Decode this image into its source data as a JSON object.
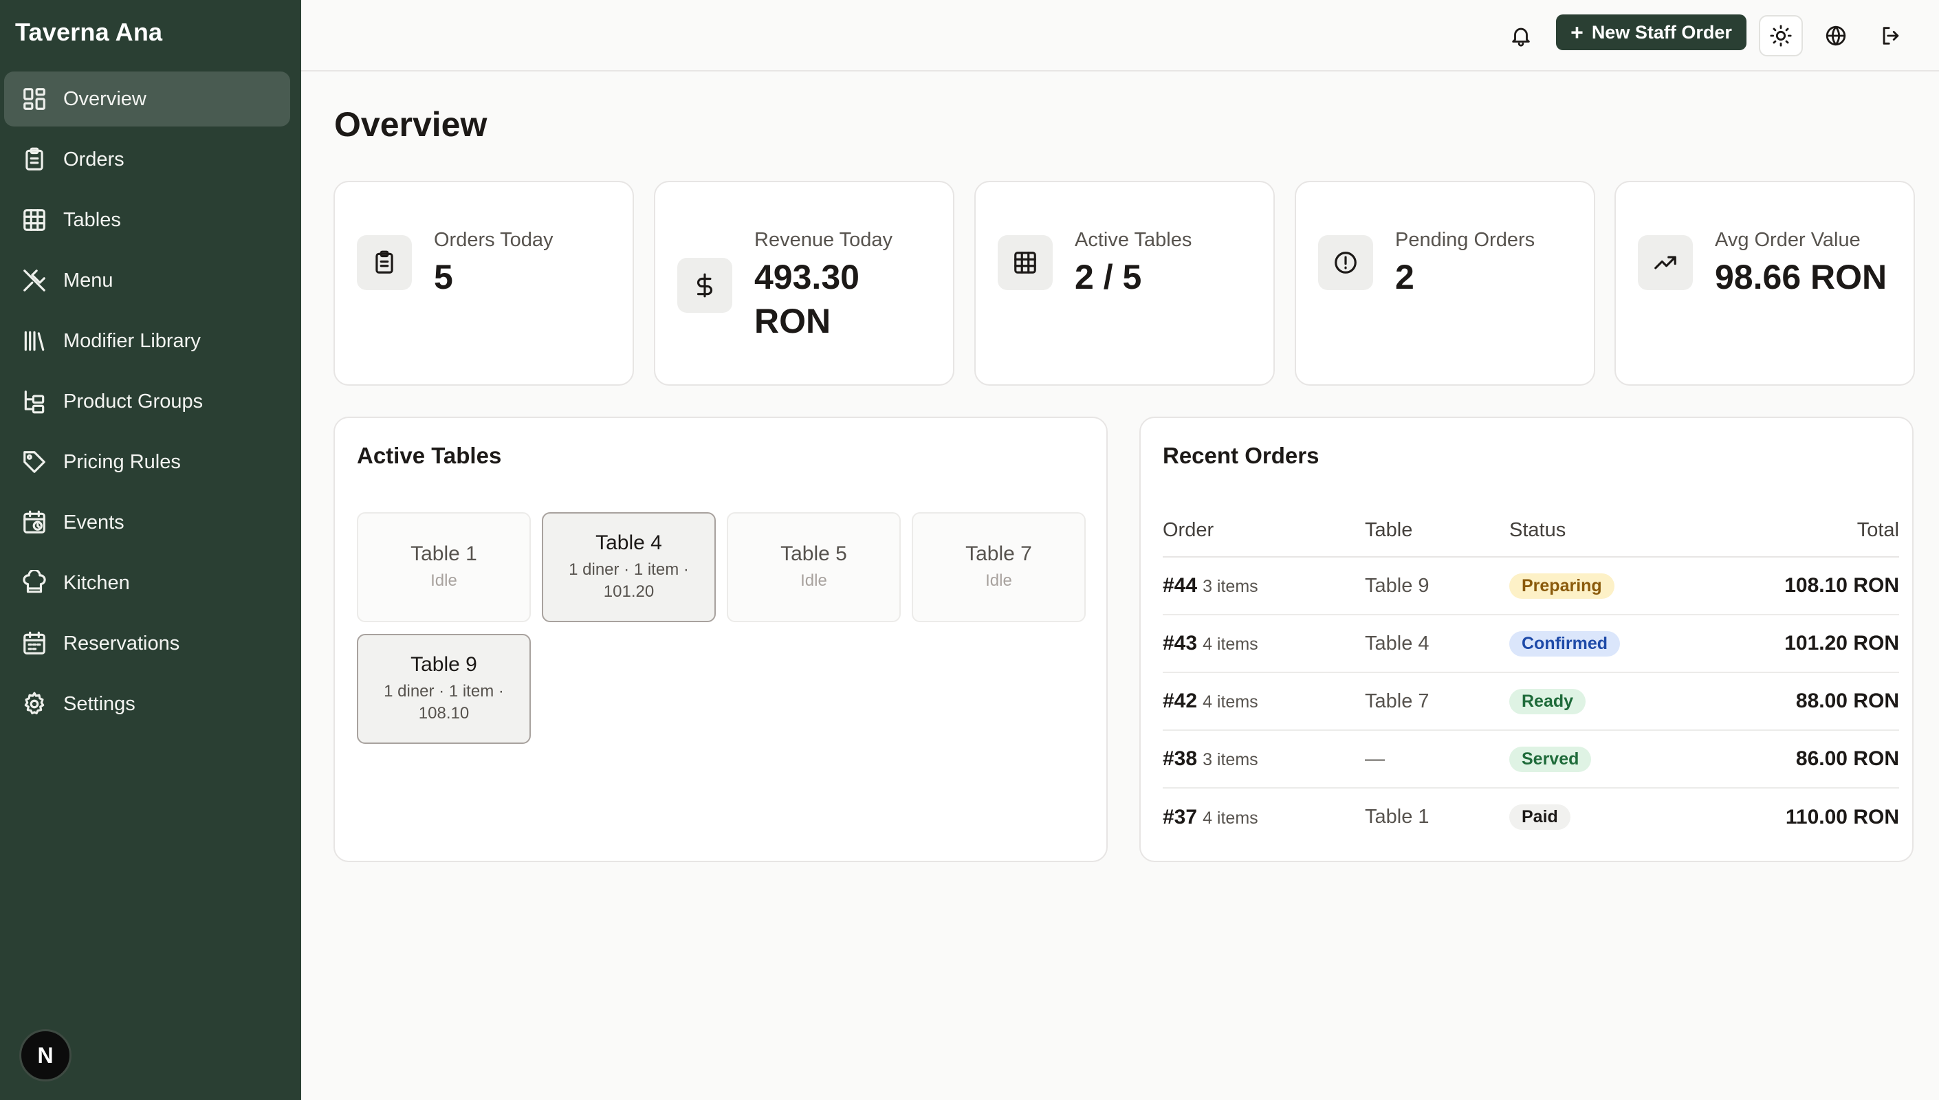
{
  "app": {
    "brand": "Taverna Ana"
  },
  "sidebar": {
    "items": [
      {
        "label": "Overview",
        "icon": "dashboard-icon",
        "active": true
      },
      {
        "label": "Orders",
        "icon": "clipboard-icon"
      },
      {
        "label": "Tables",
        "icon": "table-grid-icon"
      },
      {
        "label": "Menu",
        "icon": "utensils-icon"
      },
      {
        "label": "Modifier Library",
        "icon": "library-icon"
      },
      {
        "label": "Product Groups",
        "icon": "tree-icon"
      },
      {
        "label": "Pricing Rules",
        "icon": "tag-icon"
      },
      {
        "label": "Events",
        "icon": "calendar-clock-icon"
      },
      {
        "label": "Kitchen",
        "icon": "chef-hat-icon"
      },
      {
        "label": "Reservations",
        "icon": "calendar-icon"
      },
      {
        "label": "Settings",
        "icon": "gear-icon"
      }
    ],
    "avatar_initial": "N"
  },
  "topbar": {
    "new_order_label": "New Staff Order",
    "icons": [
      "bell-icon",
      "sun-icon",
      "globe-icon",
      "logout-icon"
    ]
  },
  "main": {
    "title": "Overview",
    "stats": [
      {
        "label": "Orders Today",
        "value": "5",
        "icon": "clipboard-icon"
      },
      {
        "label": "Revenue Today",
        "value": "493.30 RON",
        "icon": "dollar-icon"
      },
      {
        "label": "Active Tables",
        "value": "2 / 5",
        "icon": "table-grid-icon"
      },
      {
        "label": "Pending Orders",
        "value": "2",
        "icon": "alert-circle-icon"
      },
      {
        "label": "Avg Order Value",
        "value": "98.66 RON",
        "icon": "trending-up-icon"
      }
    ],
    "active_tables": {
      "title": "Active Tables",
      "tables": [
        {
          "name": "Table 1",
          "status": "Idle",
          "occupied": false
        },
        {
          "name": "Table 4",
          "status": "1 diner · 1 item · 101.20",
          "occupied": true
        },
        {
          "name": "Table 5",
          "status": "Idle",
          "occupied": false
        },
        {
          "name": "Table 7",
          "status": "Idle",
          "occupied": false
        },
        {
          "name": "Table 9",
          "status": "1 diner · 1 item · 108.10",
          "occupied": true
        }
      ]
    },
    "recent_orders": {
      "title": "Recent Orders",
      "columns": [
        "Order",
        "Table",
        "Status",
        "Total"
      ],
      "rows": [
        {
          "order": "#44",
          "items": "3 items",
          "table": "Table 9",
          "status": "Preparing",
          "total": "108.10 RON"
        },
        {
          "order": "#43",
          "items": "4 items",
          "table": "Table 4",
          "status": "Confirmed",
          "total": "101.20 RON"
        },
        {
          "order": "#42",
          "items": "4 items",
          "table": "Table 7",
          "status": "Ready",
          "total": "88.00 RON"
        },
        {
          "order": "#38",
          "items": "3 items",
          "table": "—",
          "status": "Served",
          "total": "86.00 RON"
        },
        {
          "order": "#37",
          "items": "4 items",
          "table": "Table 1",
          "status": "Paid",
          "total": "110.00 RON"
        }
      ]
    }
  },
  "colors": {
    "sidebar_bg": "#2a3f33",
    "accent": "#2a3f33",
    "preparing": "#fdf1c7",
    "confirmed": "#dbe6fb",
    "ready": "#dff3e4",
    "served": "#dff3e4",
    "paid": "#f1f1ef"
  }
}
